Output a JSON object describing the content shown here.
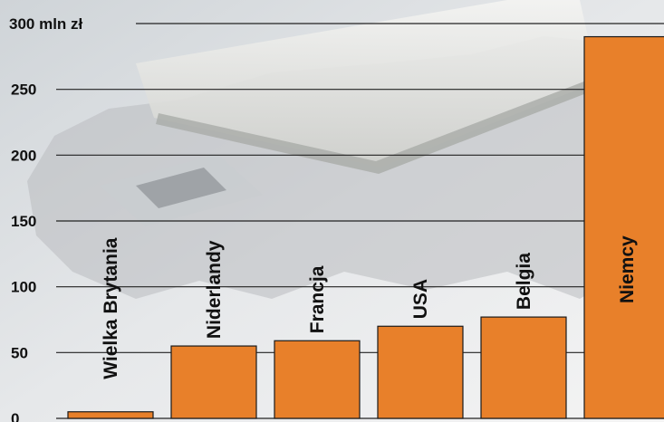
{
  "chart_data": {
    "type": "bar",
    "title": "",
    "xlabel": "",
    "ylabel": "",
    "categories": [
      "Wielka Brytania",
      "Niderlandy",
      "Francja",
      "USA",
      "Belgia",
      "Niemcy"
    ],
    "values": [
      5,
      55,
      59,
      70,
      77,
      290
    ],
    "ylim": [
      0,
      300
    ],
    "y_ticks": [
      {
        "value": 0,
        "label": "0"
      },
      {
        "value": 50,
        "label": "50"
      },
      {
        "value": 100,
        "label": "100"
      },
      {
        "value": 150,
        "label": "150"
      },
      {
        "value": 200,
        "label": "200"
      },
      {
        "value": 250,
        "label": "250"
      },
      {
        "value": 300,
        "label": "300 mln zł"
      }
    ],
    "grid": true,
    "bar_color": "#e8802a",
    "bar_edge_color": "#1a1a1a",
    "grid_color": "#222222"
  }
}
